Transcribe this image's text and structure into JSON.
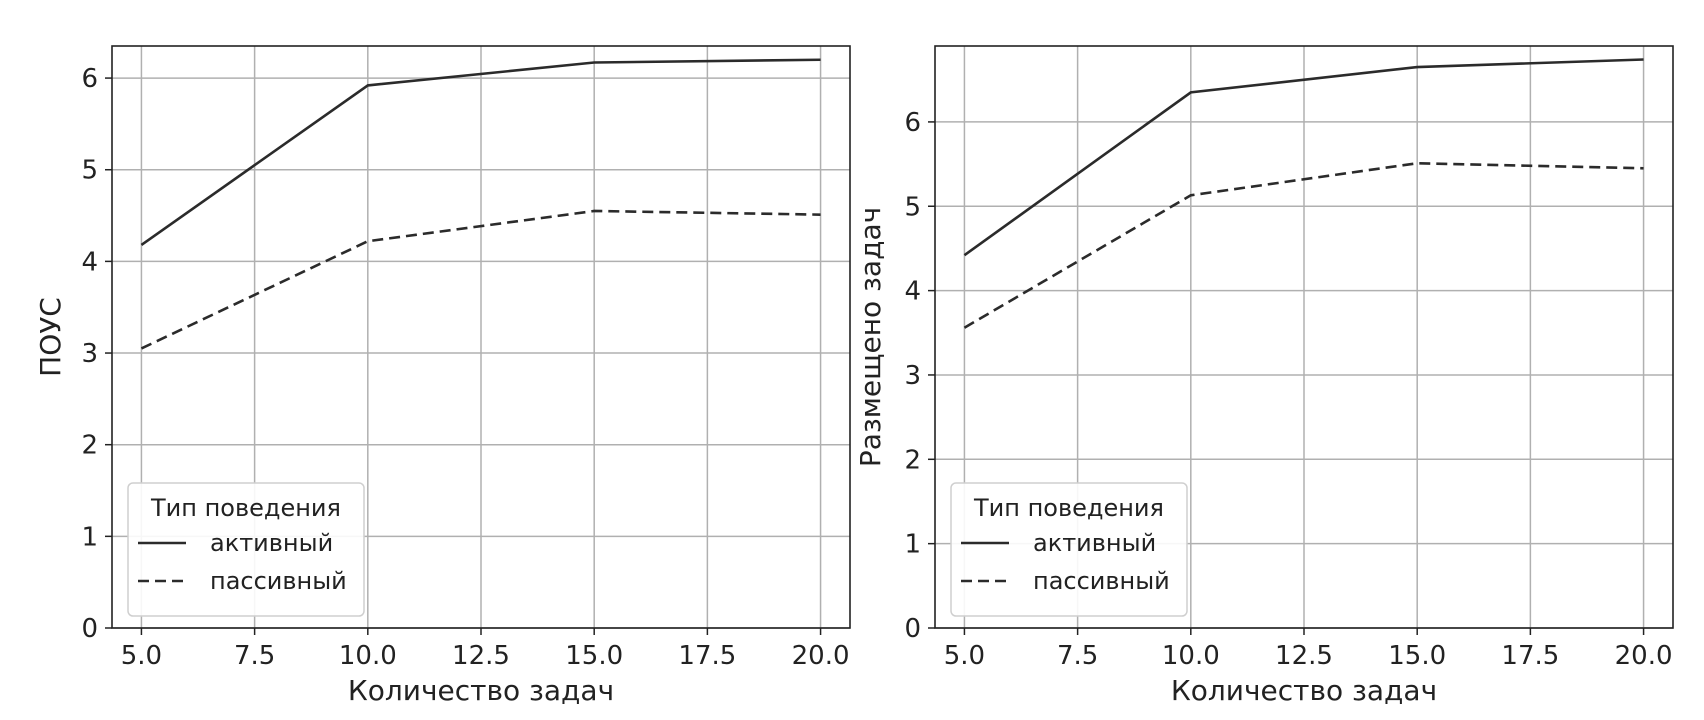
{
  "chart_data": [
    {
      "type": "line",
      "xlabel": "Количество задач",
      "ylabel": "ПОУС",
      "x": [
        5,
        10,
        15,
        20
      ],
      "xlim": [
        4.35,
        20.65
      ],
      "ylim": [
        0,
        6.35
      ],
      "xticks": [
        "5.0",
        "7.5",
        "10.0",
        "12.5",
        "15.0",
        "17.5",
        "20.0"
      ],
      "yticks": [
        "0",
        "1",
        "2",
        "3",
        "4",
        "5",
        "6"
      ],
      "grid": true,
      "legend": {
        "title": "Тип поведения",
        "placement": "lower-left"
      },
      "series": [
        {
          "name": "активный",
          "style": "solid",
          "color": "#2b2b2b",
          "values": [
            4.18,
            5.92,
            6.17,
            6.2
          ]
        },
        {
          "name": "пассивный",
          "style": "dashed",
          "color": "#2b2b2b",
          "values": [
            3.05,
            4.22,
            4.55,
            4.51
          ]
        }
      ]
    },
    {
      "type": "line",
      "xlabel": "Количество задач",
      "ylabel": "Размещено задач",
      "x": [
        5,
        10,
        15,
        20
      ],
      "xlim": [
        4.35,
        20.65
      ],
      "ylim": [
        0,
        6.9
      ],
      "xticks": [
        "5.0",
        "7.5",
        "10.0",
        "12.5",
        "15.0",
        "17.5",
        "20.0"
      ],
      "yticks": [
        "0",
        "1",
        "2",
        "3",
        "4",
        "5",
        "6"
      ],
      "grid": true,
      "legend": {
        "title": "Тип поведения",
        "placement": "lower-left"
      },
      "series": [
        {
          "name": "активный",
          "style": "solid",
          "color": "#2b2b2b",
          "values": [
            4.42,
            6.35,
            6.65,
            6.74
          ]
        },
        {
          "name": "пассивный",
          "style": "dashed",
          "color": "#2b2b2b",
          "values": [
            3.56,
            5.13,
            5.51,
            5.45
          ]
        }
      ]
    }
  ]
}
